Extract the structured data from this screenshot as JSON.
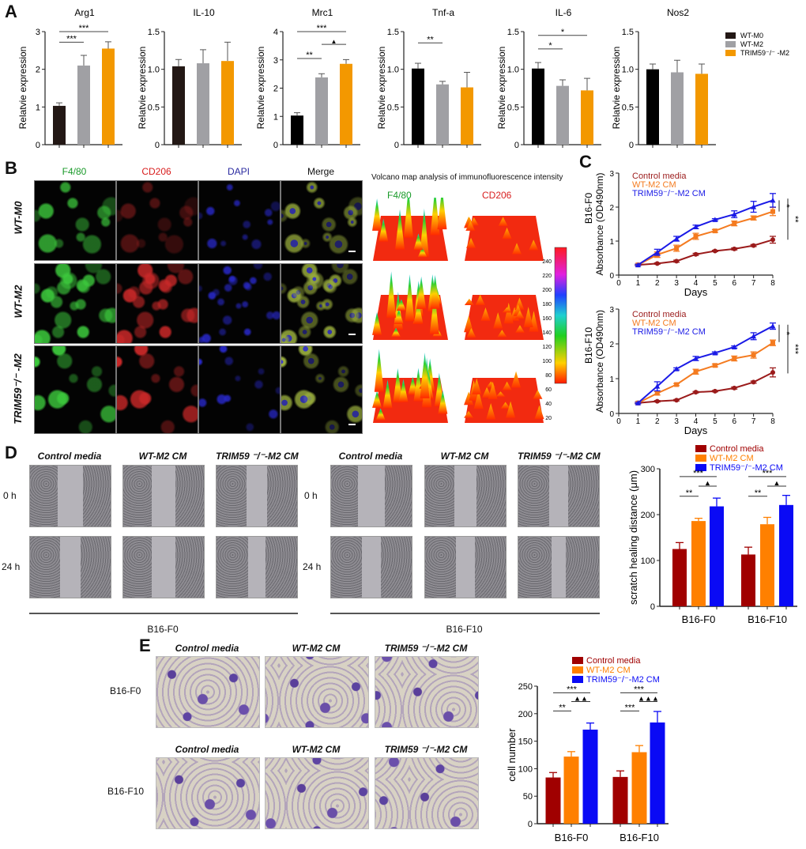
{
  "panels": {
    "a": "A",
    "b": "B",
    "c": "C",
    "d": "D",
    "e": "E"
  },
  "legend_a": [
    {
      "label": "WT-M0",
      "color": "#231815"
    },
    {
      "label": "WT-M2",
      "color": "#a0a0a4"
    },
    {
      "label": "TRIM59⁻/⁻ -M2",
      "color": "#f39800"
    }
  ],
  "panel_b": {
    "channels": [
      {
        "label": "F4/80",
        "color": "#1a9a2a"
      },
      {
        "label": "CD206",
        "color": "#d81e1e"
      },
      {
        "label": "DAPI",
        "color": "#2a2aa0"
      },
      {
        "label": "Merge",
        "color": "#111111"
      }
    ],
    "rows": [
      "WT-M0",
      "WT-M2",
      "TRIM59⁻/⁻ -M2"
    ],
    "volcano_title": "Volcano map analysis of immunofluorescence intensity",
    "volcano_channels": [
      {
        "label": "F4/80",
        "color": "#1a9a2a"
      },
      {
        "label": "CD206",
        "color": "#d81e1e"
      }
    ],
    "colorbar_ticks": [
      "240",
      "220",
      "200",
      "180",
      "160",
      "140",
      "120",
      "100",
      "80",
      "60",
      "40",
      "20"
    ]
  },
  "panel_d": {
    "columns": [
      "Control media",
      "WT-M2 CM",
      "TRIM59 ⁻/⁻-M2 CM"
    ],
    "rows": [
      "0 h",
      "24 h"
    ],
    "groups": [
      "B16-F0",
      "B16-F10"
    ]
  },
  "panel_e": {
    "columns": [
      "Control media",
      "WT-M2 CM",
      "TRIM59 ⁻/⁻-M2 CM"
    ],
    "rows": [
      "B16-F0",
      "B16-F10"
    ]
  },
  "chart_data": [
    {
      "id": "a-arg1",
      "type": "bar",
      "title": "Arg1",
      "ylabel": "Relatvie expression",
      "ylim": [
        0,
        3
      ],
      "yticks": [
        "0",
        "1",
        "2",
        "3"
      ],
      "categories": [
        "WT-M0",
        "WT-M2",
        "TRIM59-/- -M2"
      ],
      "values": [
        1.03,
        2.1,
        2.55
      ],
      "errors": [
        0.08,
        0.27,
        0.18
      ],
      "colors": [
        "#231815",
        "#a0a0a4",
        "#f39800"
      ],
      "sig": [
        {
          "from": 0,
          "to": 1,
          "y": 2.72,
          "label": "***"
        },
        {
          "from": 0,
          "to": 2,
          "y": 3.0,
          "label": "***"
        }
      ]
    },
    {
      "id": "a-il10",
      "type": "bar",
      "title": "IL-10",
      "ylabel": "Relatvie expression",
      "ylim": [
        0,
        1.5
      ],
      "yticks": [
        "0",
        "0.5",
        "1.0",
        "1.5"
      ],
      "categories": [
        "WT-M0",
        "WT-M2",
        "TRIM59-/- -M2"
      ],
      "values": [
        1.04,
        1.08,
        1.11
      ],
      "errors": [
        0.09,
        0.18,
        0.25
      ],
      "colors": [
        "#231815",
        "#a0a0a4",
        "#f39800"
      ],
      "sig": []
    },
    {
      "id": "a-mrc1",
      "type": "bar",
      "title": "Mrc1",
      "ylabel": "Relatvie expression",
      "ylim": [
        0,
        4
      ],
      "yticks": [
        "0",
        "1",
        "2",
        "3",
        "4"
      ],
      "categories": [
        "WT-M0",
        "WT-M2",
        "TRIM59-/- -M2"
      ],
      "values": [
        1.03,
        2.38,
        2.86
      ],
      "errors": [
        0.1,
        0.13,
        0.15
      ],
      "colors": [
        "#000000",
        "#a0a0a4",
        "#f39800"
      ],
      "sig": [
        {
          "from": 0,
          "to": 1,
          "y": 3.05,
          "label": "**"
        },
        {
          "from": 1,
          "to": 2,
          "y": 3.55,
          "label": "▲"
        },
        {
          "from": 0,
          "to": 2,
          "y": 4.0,
          "label": "***"
        }
      ]
    },
    {
      "id": "a-tnfa",
      "type": "bar",
      "title": "Tnf-a",
      "ylabel": "Relatvie expression",
      "ylim": [
        0,
        1.5
      ],
      "yticks": [
        "0",
        "0.5",
        "1.0",
        "1.5"
      ],
      "categories": [
        "WT-M0",
        "WT-M2",
        "TRIM59-/- -M2"
      ],
      "values": [
        1.01,
        0.8,
        0.76
      ],
      "errors": [
        0.07,
        0.04,
        0.2
      ],
      "colors": [
        "#000000",
        "#a0a0a4",
        "#f39800"
      ],
      "sig": [
        {
          "from": 0,
          "to": 1,
          "y": 1.35,
          "label": "**"
        }
      ]
    },
    {
      "id": "a-il6",
      "type": "bar",
      "title": "IL-6",
      "ylabel": "Relatvie expression",
      "ylim": [
        0,
        1.5
      ],
      "yticks": [
        "0",
        "0.5",
        "1.0",
        "1.5"
      ],
      "categories": [
        "WT-M0",
        "WT-M2",
        "TRIM59-/- -M2"
      ],
      "values": [
        1.01,
        0.78,
        0.72
      ],
      "errors": [
        0.08,
        0.08,
        0.16
      ],
      "colors": [
        "#000000",
        "#a0a0a4",
        "#f39800"
      ],
      "sig": [
        {
          "from": 0,
          "to": 1,
          "y": 1.27,
          "label": "*"
        },
        {
          "from": 0,
          "to": 2,
          "y": 1.45,
          "label": "*"
        }
      ]
    },
    {
      "id": "a-nos2",
      "type": "bar",
      "title": "Nos2",
      "ylabel": "Relatvie expression",
      "ylim": [
        0,
        1.5
      ],
      "yticks": [
        "0",
        "0.5",
        "1.0",
        "1.5"
      ],
      "categories": [
        "WT-M0",
        "WT-M2",
        "TRIM59-/- -M2"
      ],
      "values": [
        1.0,
        0.96,
        0.94
      ],
      "errors": [
        0.07,
        0.16,
        0.13
      ],
      "colors": [
        "#000000",
        "#a0a0a4",
        "#f39800"
      ],
      "sig": []
    },
    {
      "id": "c-f0",
      "type": "line",
      "title": "",
      "ylabel": [
        "B16-F0",
        "Absorbance (OD490nm)"
      ],
      "xlabel": "Days",
      "xlim": [
        0,
        8
      ],
      "ylim": [
        0,
        3
      ],
      "xticks": [
        "0",
        "1",
        "2",
        "3",
        "4",
        "5",
        "6",
        "7",
        "8"
      ],
      "yticks": [
        "0",
        "1",
        "2",
        "3"
      ],
      "x": [
        1,
        2,
        3,
        4,
        5,
        6,
        7,
        8
      ],
      "series": [
        {
          "name": "Control media",
          "color": "#9b1b1b",
          "marker": "circle",
          "values": [
            0.3,
            0.34,
            0.41,
            0.61,
            0.71,
            0.77,
            0.87,
            1.04
          ],
          "errors": [
            0.02,
            0.02,
            0.03,
            0.03,
            0.02,
            0.03,
            0.03,
            0.1
          ]
        },
        {
          "name": "WT-M2 CM",
          "color": "#f47b20",
          "marker": "square",
          "values": [
            0.3,
            0.6,
            0.79,
            1.14,
            1.3,
            1.52,
            1.68,
            1.87
          ],
          "errors": [
            0.02,
            0.08,
            0.09,
            0.09,
            0.04,
            0.07,
            0.06,
            0.12
          ]
        },
        {
          "name": "TRIM59⁻/⁻-M2 CM",
          "color": "#1a1ae6",
          "marker": "triangle",
          "values": [
            0.3,
            0.67,
            1.07,
            1.42,
            1.63,
            1.79,
            2.01,
            2.2
          ],
          "errors": [
            0.02,
            0.09,
            0.07,
            0.05,
            0.03,
            0.1,
            0.16,
            0.2
          ]
        }
      ],
      "sig": [
        {
          "from": 2.2,
          "to": 1.87,
          "label": "*",
          "lane": 0
        },
        {
          "from": 2.25,
          "to": 1.04,
          "label": "**",
          "lane": 1
        }
      ]
    },
    {
      "id": "c-f10",
      "type": "line",
      "title": "",
      "ylabel": [
        "B16-F10",
        "Absorbance (OD490nm)"
      ],
      "xlabel": "Days",
      "xlim": [
        0,
        8
      ],
      "ylim": [
        0,
        3
      ],
      "xticks": [
        "0",
        "1",
        "2",
        "3",
        "4",
        "5",
        "6",
        "7",
        "8"
      ],
      "yticks": [
        "0",
        "1",
        "2",
        "3"
      ],
      "x": [
        1,
        2,
        3,
        4,
        5,
        6,
        7,
        8
      ],
      "series": [
        {
          "name": "Control media",
          "color": "#9b1b1b",
          "marker": "circle",
          "values": [
            0.3,
            0.35,
            0.38,
            0.61,
            0.64,
            0.73,
            0.9,
            1.18
          ],
          "errors": [
            0.02,
            0.02,
            0.02,
            0.02,
            0.02,
            0.03,
            0.03,
            0.13
          ]
        },
        {
          "name": "WT-M2 CM",
          "color": "#f47b20",
          "marker": "square",
          "values": [
            0.3,
            0.58,
            0.83,
            1.2,
            1.38,
            1.58,
            1.68,
            2.03
          ],
          "errors": [
            0.02,
            0.05,
            0.03,
            0.07,
            0.04,
            0.07,
            0.09,
            0.08
          ]
        },
        {
          "name": "TRIM59⁻/⁻-M2 CM",
          "color": "#1a1ae6",
          "marker": "triangle",
          "values": [
            0.3,
            0.78,
            1.28,
            1.58,
            1.74,
            1.91,
            2.22,
            2.51
          ],
          "errors": [
            0.02,
            0.13,
            0.03,
            0.06,
            0.03,
            0.03,
            0.1,
            0.09
          ]
        }
      ],
      "sig": [
        {
          "from": 2.55,
          "to": 2.05,
          "label": "*",
          "lane": 0
        },
        {
          "from": 2.55,
          "to": 1.15,
          "label": "***",
          "lane": 1
        }
      ]
    },
    {
      "id": "d-scratch",
      "type": "bar",
      "title": "",
      "ylabel": "scratch healing distance (μm)",
      "ylim": [
        0,
        300
      ],
      "yticks": [
        "0",
        "100",
        "200",
        "300"
      ],
      "categories": [
        "B16-F0",
        "B16-F10"
      ],
      "series": [
        {
          "name": "Control media",
          "color": "#a00000",
          "values": [
            125,
            113
          ],
          "errors": [
            14,
            16
          ]
        },
        {
          "name": "WT-M2 CM",
          "color": "#ff8000",
          "values": [
            186,
            179
          ],
          "errors": [
            6,
            15
          ]
        },
        {
          "name": "TRIM59⁻/⁻-M2 CM",
          "color": "#0a0af5",
          "values": [
            218,
            221
          ],
          "errors": [
            18,
            21
          ]
        }
      ],
      "sig": [
        {
          "group": 0,
          "from": 0,
          "to": 1,
          "y": 240,
          "label": "**"
        },
        {
          "group": 0,
          "from": 1,
          "to": 2,
          "y": 262,
          "label": "▲"
        },
        {
          "group": 0,
          "from": 0,
          "to": 2,
          "y": 283,
          "label": "***"
        },
        {
          "group": 1,
          "from": 0,
          "to": 1,
          "y": 240,
          "label": "**"
        },
        {
          "group": 1,
          "from": 1,
          "to": 2,
          "y": 262,
          "label": "▲"
        },
        {
          "group": 1,
          "from": 0,
          "to": 2,
          "y": 283,
          "label": "***"
        }
      ]
    },
    {
      "id": "e-transwell",
      "type": "bar",
      "title": "",
      "ylabel": "cell number",
      "ylim": [
        0,
        250
      ],
      "yticks": [
        "0",
        "50",
        "100",
        "150",
        "200",
        "250"
      ],
      "categories": [
        "B16-F0",
        "B16-F10"
      ],
      "series": [
        {
          "name": "Control media",
          "color": "#a00000",
          "values": [
            84,
            85
          ],
          "errors": [
            9,
            11
          ]
        },
        {
          "name": "WT-M2 CM",
          "color": "#ff8000",
          "values": [
            122,
            130
          ],
          "errors": [
            9,
            12
          ]
        },
        {
          "name": "TRIM59⁻/⁻-M2 CM",
          "color": "#0a0af5",
          "values": [
            171,
            184
          ],
          "errors": [
            12,
            20
          ]
        }
      ],
      "sig": [
        {
          "group": 0,
          "from": 0,
          "to": 1,
          "y": 205,
          "label": "**"
        },
        {
          "group": 0,
          "from": 1,
          "to": 2,
          "y": 222,
          "label": "▲▲"
        },
        {
          "group": 0,
          "from": 0,
          "to": 2,
          "y": 238,
          "label": "***"
        },
        {
          "group": 1,
          "from": 0,
          "to": 1,
          "y": 205,
          "label": "***"
        },
        {
          "group": 1,
          "from": 1,
          "to": 2,
          "y": 222,
          "label": "▲▲▲"
        },
        {
          "group": 1,
          "from": 0,
          "to": 2,
          "y": 238,
          "label": "***"
        }
      ]
    }
  ]
}
